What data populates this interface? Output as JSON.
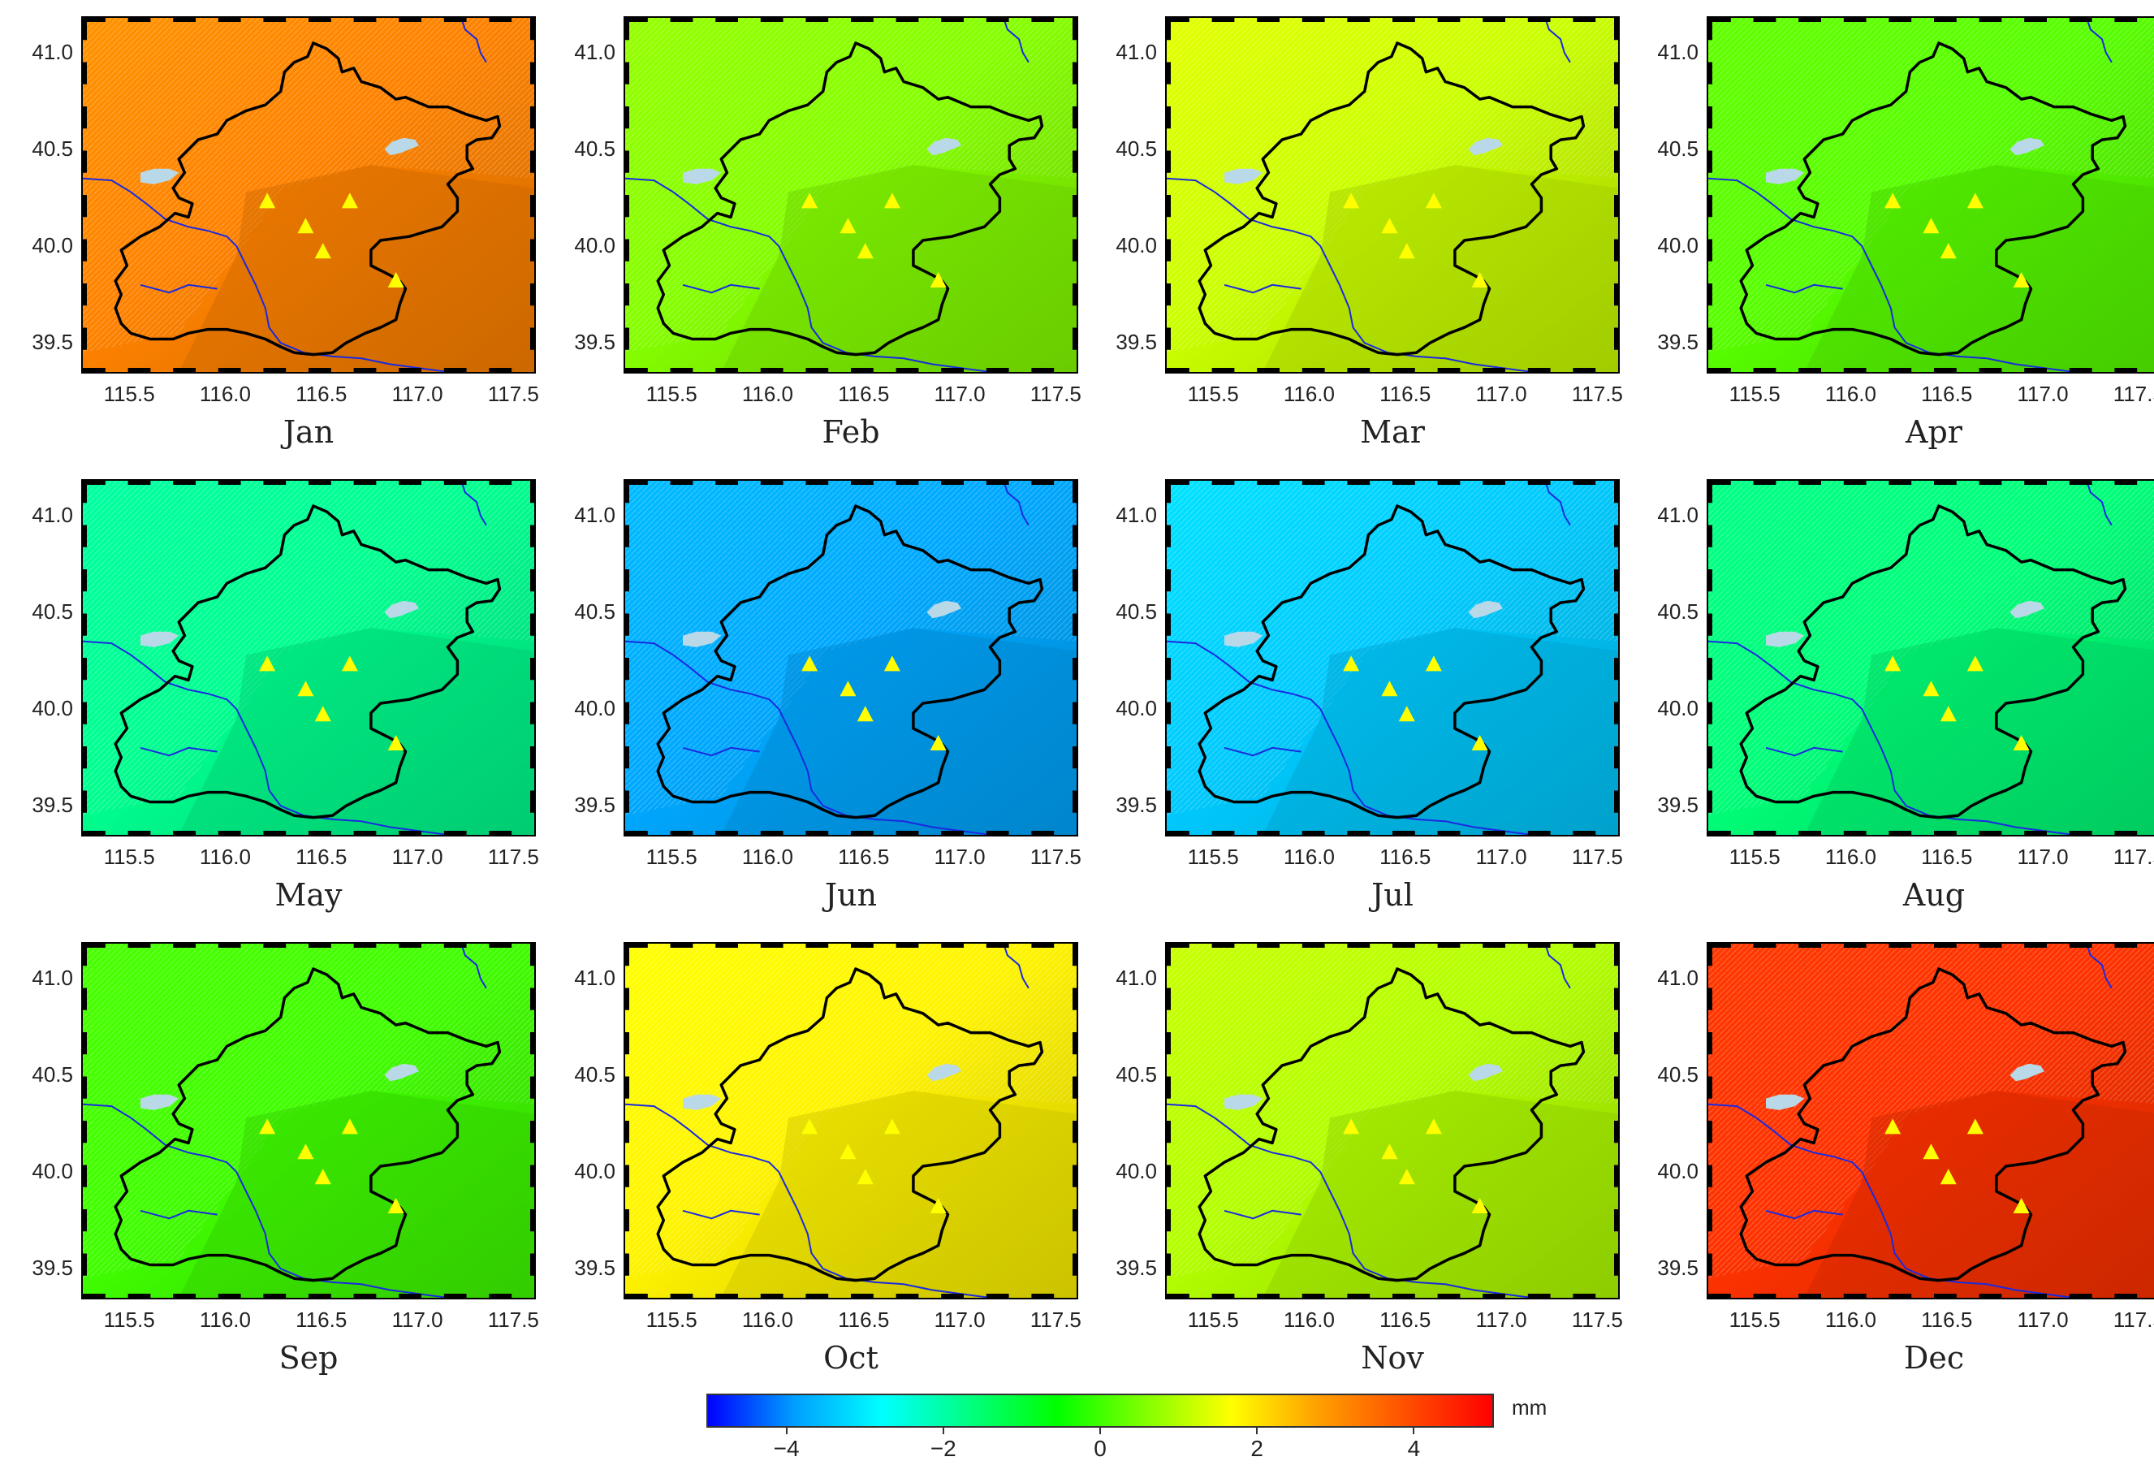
{
  "months": [
    {
      "label": "Jan",
      "value": 3.2
    },
    {
      "label": "Feb",
      "value": 0.6
    },
    {
      "label": "Mar",
      "value": 1.2
    },
    {
      "label": "Apr",
      "value": 0.2
    },
    {
      "label": "May",
      "value": -1.8
    },
    {
      "label": "Jun",
      "value": -3.8
    },
    {
      "label": "Jul",
      "value": -3.4
    },
    {
      "label": "Aug",
      "value": -1.6
    },
    {
      "label": "Sep",
      "value": 0.0
    },
    {
      "label": "Oct",
      "value": 1.8
    },
    {
      "label": "Nov",
      "value": 1.0
    },
    {
      "label": "Dec",
      "value": 4.3
    }
  ],
  "x_ticks": [
    "115.5",
    "116.0",
    "116.5",
    "117.0",
    "117.5"
  ],
  "y_ticks": [
    "41.0",
    "40.5",
    "40.0",
    "39.5"
  ],
  "x_range": [
    115.25,
    117.6
  ],
  "y_range": [
    39.35,
    41.18
  ],
  "stations": [
    {
      "lon": 116.21,
      "lat": 40.23
    },
    {
      "lon": 116.64,
      "lat": 40.23
    },
    {
      "lon": 116.41,
      "lat": 40.1
    },
    {
      "lon": 116.5,
      "lat": 39.97
    },
    {
      "lon": 116.88,
      "lat": 39.82
    }
  ],
  "colorbar": {
    "unit": "mm",
    "min": -5,
    "max": 5,
    "ticks": [
      {
        "value": -4,
        "label": "−4"
      },
      {
        "value": -2,
        "label": "−2"
      },
      {
        "value": 0,
        "label": "0"
      },
      {
        "value": 2,
        "label": "2"
      },
      {
        "value": 4,
        "label": "4"
      }
    ],
    "colors": [
      "#0000ff",
      "#00a0ff",
      "#00ffff",
      "#00ff80",
      "#00ff00",
      "#80ff00",
      "#ffff00",
      "#ffa000",
      "#ff5000",
      "#ff0000"
    ]
  },
  "map_colors": {
    "boundary": "#000000",
    "river": "#1a2ae0",
    "reservoir": "#b9d9e8",
    "station": "#ffff00"
  }
}
